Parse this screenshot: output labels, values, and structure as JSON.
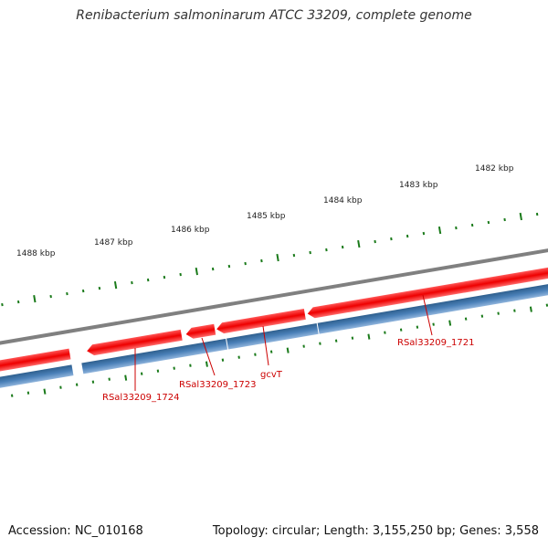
{
  "header": {
    "title": "Renibacterium salmoninarum ATCC 33209, complete genome"
  },
  "footer": {
    "accession": "Accession: NC_010168",
    "summary": "Topology: circular; Length: 3,155,250 bp; Genes: 3,558"
  },
  "scale_labels": [
    "1488 kbp",
    "1487 kbp",
    "1486 kbp",
    "1485 kbp",
    "1484 kbp",
    "1483 kbp",
    "1482 kbp"
  ],
  "gene_labels": [
    "RSal33209_1724",
    "RSal33209_1723",
    "gcvT",
    "RSal33209_1721"
  ],
  "colors": {
    "forward": "#ee0000",
    "reverse": "#4477aa",
    "backbone": "#808080",
    "ticks": "#1a7a1a",
    "label": "#cc0000"
  }
}
